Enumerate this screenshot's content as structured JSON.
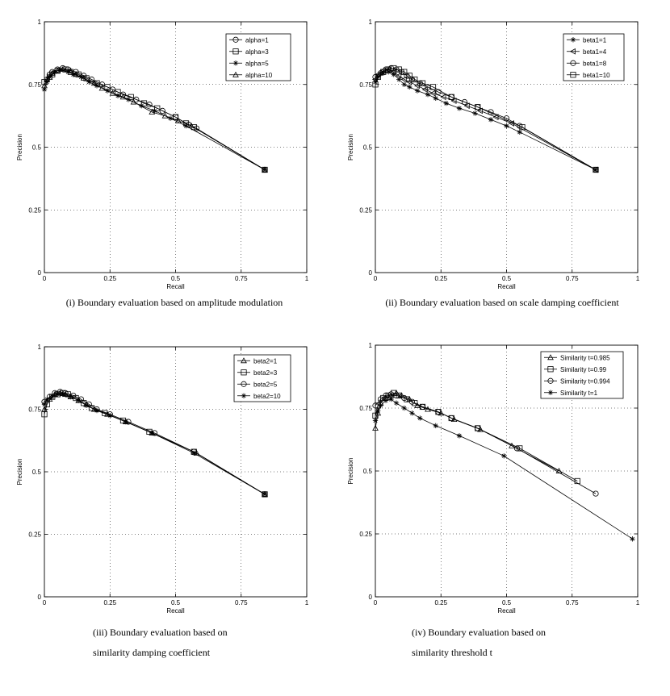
{
  "chart_data": [
    {
      "type": "line",
      "xlabel": "Recall",
      "ylabel": "Precision",
      "xlim": [
        0,
        1
      ],
      "ylim": [
        0,
        1
      ],
      "xticks": [
        "0",
        "0.25",
        "0.5",
        "0.75",
        "1"
      ],
      "yticks": [
        "0",
        "0.25",
        "0.5",
        "0.75",
        "1"
      ],
      "legend_position": "top-right",
      "caption": [
        "(i) Boundary evaluation based on amplitude modulation"
      ],
      "series": [
        {
          "name": "alpha=1",
          "marker": "circle",
          "x": [
            0.01,
            0.02,
            0.03,
            0.05,
            0.07,
            0.09,
            0.12,
            0.15,
            0.18,
            0.22,
            0.26,
            0.3,
            0.35,
            0.4,
            0.45,
            0.5,
            0.55,
            0.58,
            0.84
          ],
          "y": [
            0.77,
            0.79,
            0.8,
            0.81,
            0.815,
            0.81,
            0.8,
            0.785,
            0.77,
            0.75,
            0.73,
            0.71,
            0.69,
            0.67,
            0.645,
            0.62,
            0.59,
            0.575,
            0.41
          ]
        },
        {
          "name": "alpha=3",
          "marker": "square",
          "x": [
            0.0,
            0.02,
            0.03,
            0.05,
            0.08,
            0.1,
            0.13,
            0.16,
            0.2,
            0.24,
            0.28,
            0.33,
            0.38,
            0.43,
            0.5,
            0.54,
            0.57,
            0.84
          ],
          "y": [
            0.76,
            0.78,
            0.79,
            0.805,
            0.81,
            0.8,
            0.79,
            0.775,
            0.755,
            0.74,
            0.72,
            0.7,
            0.675,
            0.655,
            0.62,
            0.595,
            0.58,
            0.41
          ]
        },
        {
          "name": "alpha=5",
          "marker": "star",
          "x": [
            0.0,
            0.01,
            0.02,
            0.04,
            0.06,
            0.09,
            0.11,
            0.14,
            0.17,
            0.2,
            0.24,
            0.28,
            0.32,
            0.37,
            0.42,
            0.48,
            0.54,
            0.84
          ],
          "y": [
            0.73,
            0.76,
            0.78,
            0.8,
            0.81,
            0.8,
            0.79,
            0.78,
            0.76,
            0.745,
            0.725,
            0.705,
            0.69,
            0.665,
            0.645,
            0.615,
            0.585,
            0.41
          ]
        },
        {
          "name": "alpha=10",
          "marker": "triangle",
          "x": [
            0.0,
            0.01,
            0.03,
            0.05,
            0.07,
            0.1,
            0.12,
            0.15,
            0.19,
            0.22,
            0.26,
            0.3,
            0.34,
            0.41,
            0.46,
            0.51,
            0.56,
            0.84
          ],
          "y": [
            0.745,
            0.77,
            0.795,
            0.805,
            0.81,
            0.805,
            0.79,
            0.775,
            0.755,
            0.735,
            0.715,
            0.7,
            0.68,
            0.64,
            0.625,
            0.605,
            0.585,
            0.41
          ]
        }
      ]
    },
    {
      "type": "line",
      "xlabel": "Recall",
      "ylabel": "Precision",
      "xlim": [
        0,
        1
      ],
      "ylim": [
        0,
        1
      ],
      "xticks": [
        "0",
        "0.25",
        "0.5",
        "0.75",
        "1"
      ],
      "yticks": [
        "0",
        "0.25",
        "0.5",
        "0.75",
        "1"
      ],
      "legend_position": "top-right",
      "caption": [
        "(ii) Boundary evaluation based on scale damping coefficient"
      ],
      "series": [
        {
          "name": "beta1=1",
          "marker": "star",
          "x": [
            0.0,
            0.01,
            0.03,
            0.05,
            0.07,
            0.09,
            0.11,
            0.13,
            0.16,
            0.2,
            0.23,
            0.27,
            0.32,
            0.38,
            0.44,
            0.5,
            0.55,
            0.84
          ],
          "y": [
            0.76,
            0.78,
            0.795,
            0.8,
            0.79,
            0.77,
            0.75,
            0.74,
            0.725,
            0.71,
            0.695,
            0.675,
            0.655,
            0.635,
            0.61,
            0.585,
            0.56,
            0.41
          ]
        },
        {
          "name": "beta1=4",
          "marker": "triangle-left",
          "x": [
            0.0,
            0.01,
            0.03,
            0.05,
            0.07,
            0.09,
            0.11,
            0.13,
            0.16,
            0.19,
            0.22,
            0.26,
            0.3,
            0.35,
            0.4,
            0.46,
            0.52,
            0.84
          ],
          "y": [
            0.77,
            0.79,
            0.805,
            0.81,
            0.8,
            0.785,
            0.77,
            0.76,
            0.745,
            0.73,
            0.715,
            0.7,
            0.685,
            0.665,
            0.645,
            0.62,
            0.595,
            0.41
          ]
        },
        {
          "name": "beta1=8",
          "marker": "circle",
          "x": [
            0.0,
            0.02,
            0.04,
            0.06,
            0.08,
            0.1,
            0.12,
            0.14,
            0.17,
            0.2,
            0.24,
            0.29,
            0.34,
            0.39,
            0.44,
            0.5,
            0.55,
            0.84
          ],
          "y": [
            0.78,
            0.795,
            0.81,
            0.815,
            0.81,
            0.8,
            0.785,
            0.77,
            0.755,
            0.74,
            0.72,
            0.7,
            0.68,
            0.66,
            0.64,
            0.615,
            0.585,
            0.41
          ]
        },
        {
          "name": "beta1=10",
          "marker": "square",
          "x": [
            0.0,
            0.01,
            0.03,
            0.05,
            0.07,
            0.09,
            0.11,
            0.13,
            0.15,
            0.18,
            0.22,
            0.29,
            0.39,
            0.56,
            0.84
          ],
          "y": [
            0.75,
            0.78,
            0.8,
            0.81,
            0.815,
            0.81,
            0.8,
            0.785,
            0.77,
            0.755,
            0.74,
            0.7,
            0.66,
            0.58,
            0.41
          ]
        }
      ]
    },
    {
      "type": "line",
      "xlabel": "Recall",
      "ylabel": "Precision",
      "xlim": [
        0,
        1
      ],
      "ylim": [
        0,
        1
      ],
      "xticks": [
        "0",
        "0.25",
        "0.5",
        "0.75",
        "1"
      ],
      "yticks": [
        "0",
        "0.25",
        "0.5",
        "0.75",
        "1"
      ],
      "legend_position": "top-right",
      "caption": [
        "(iii) Boundary evaluation based on",
        "similarity damping coefficient"
      ],
      "series": [
        {
          "name": "beta2=1",
          "marker": "triangle",
          "x": [
            0.0,
            0.02,
            0.04,
            0.06,
            0.08,
            0.1,
            0.13,
            0.16,
            0.19,
            0.24,
            0.31,
            0.41,
            0.58,
            0.84
          ],
          "y": [
            0.75,
            0.79,
            0.81,
            0.815,
            0.81,
            0.8,
            0.785,
            0.77,
            0.75,
            0.73,
            0.7,
            0.655,
            0.575,
            0.41
          ]
        },
        {
          "name": "beta2=3",
          "marker": "square",
          "x": [
            0.0,
            0.01,
            0.03,
            0.05,
            0.07,
            0.09,
            0.12,
            0.15,
            0.18,
            0.23,
            0.3,
            0.4,
            0.57,
            0.84
          ],
          "y": [
            0.73,
            0.77,
            0.8,
            0.81,
            0.815,
            0.81,
            0.795,
            0.775,
            0.755,
            0.735,
            0.705,
            0.66,
            0.58,
            0.41
          ]
        },
        {
          "name": "beta2=5",
          "marker": "circle",
          "x": [
            0.0,
            0.02,
            0.04,
            0.06,
            0.08,
            0.11,
            0.14,
            0.17,
            0.2,
            0.25,
            0.32,
            0.42,
            0.57,
            0.84
          ],
          "y": [
            0.78,
            0.8,
            0.815,
            0.82,
            0.815,
            0.805,
            0.79,
            0.77,
            0.75,
            0.73,
            0.7,
            0.655,
            0.58,
            0.41
          ]
        },
        {
          "name": "beta2=10",
          "marker": "star",
          "x": [
            0.0,
            0.01,
            0.03,
            0.05,
            0.07,
            0.1,
            0.13,
            0.16,
            0.2,
            0.25,
            0.31,
            0.41,
            0.57,
            0.84
          ],
          "y": [
            0.77,
            0.79,
            0.8,
            0.81,
            0.81,
            0.8,
            0.785,
            0.765,
            0.745,
            0.725,
            0.7,
            0.655,
            0.575,
            0.41
          ]
        }
      ]
    },
    {
      "type": "line",
      "xlabel": "Recall",
      "ylabel": "Precision",
      "xlim": [
        0,
        1
      ],
      "ylim": [
        0,
        1
      ],
      "xticks": [
        "0",
        "0.25",
        "0.5",
        "0.75",
        "1"
      ],
      "yticks": [
        "0",
        "0.25",
        "0.5",
        "0.75",
        "1"
      ],
      "legend_position": "top-right",
      "caption": [
        "(iv) Boundary evaluation based on",
        "similarity threshold t"
      ],
      "series": [
        {
          "name": "Similarity t=0.985",
          "marker": "triangle",
          "x": [
            0.0,
            0.01,
            0.02,
            0.04,
            0.06,
            0.08,
            0.1,
            0.13,
            0.16,
            0.2,
            0.25,
            0.3,
            0.4,
            0.52,
            0.7
          ],
          "y": [
            0.67,
            0.73,
            0.77,
            0.79,
            0.8,
            0.81,
            0.8,
            0.785,
            0.76,
            0.745,
            0.73,
            0.705,
            0.665,
            0.6,
            0.5
          ]
        },
        {
          "name": "Similarity t=0.99",
          "marker": "square",
          "x": [
            0.0,
            0.01,
            0.03,
            0.05,
            0.07,
            0.09,
            0.12,
            0.15,
            0.18,
            0.24,
            0.29,
            0.39,
            0.55,
            0.77
          ],
          "y": [
            0.72,
            0.76,
            0.79,
            0.8,
            0.81,
            0.8,
            0.785,
            0.77,
            0.755,
            0.735,
            0.71,
            0.67,
            0.59,
            0.46
          ]
        },
        {
          "name": "Similarity t=0.994",
          "marker": "circle",
          "x": [
            0.0,
            0.02,
            0.04,
            0.06,
            0.08,
            0.11,
            0.14,
            0.18,
            0.24,
            0.29,
            0.39,
            0.54,
            0.84
          ],
          "y": [
            0.76,
            0.785,
            0.8,
            0.805,
            0.8,
            0.79,
            0.775,
            0.755,
            0.735,
            0.71,
            0.67,
            0.59,
            0.41
          ]
        },
        {
          "name": "Similarity t=1",
          "marker": "star",
          "x": [
            0.0,
            0.01,
            0.02,
            0.04,
            0.06,
            0.08,
            0.11,
            0.14,
            0.17,
            0.23,
            0.32,
            0.49,
            0.98
          ],
          "y": [
            0.7,
            0.74,
            0.76,
            0.78,
            0.785,
            0.77,
            0.75,
            0.73,
            0.71,
            0.68,
            0.64,
            0.56,
            0.23
          ]
        }
      ]
    }
  ]
}
